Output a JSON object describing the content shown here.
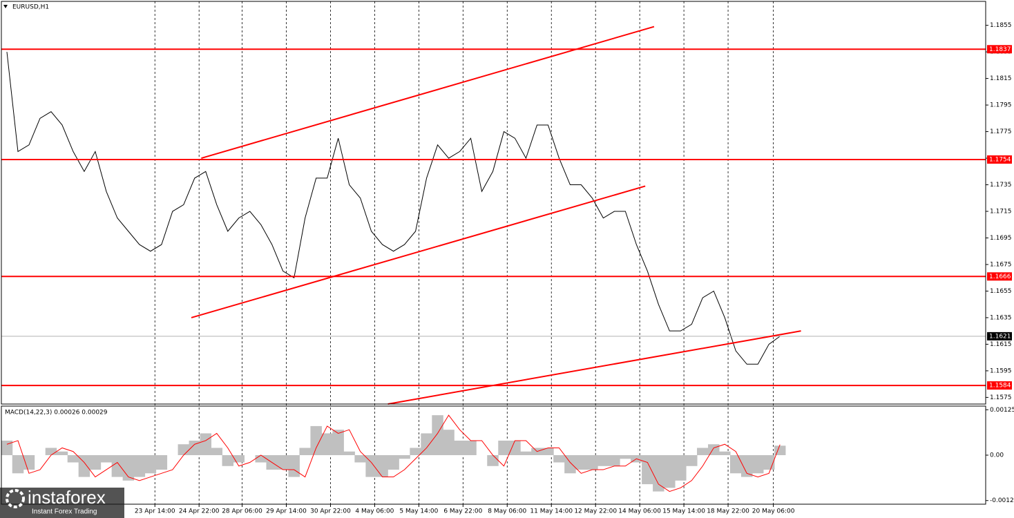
{
  "chart_data": [
    {
      "type": "line",
      "title": "EURUSD,H1",
      "color": "#000000",
      "x": [
        0,
        1,
        2,
        3,
        4,
        5,
        6,
        7,
        8,
        9,
        10,
        11,
        12,
        13,
        14,
        15,
        16,
        17,
        18,
        19,
        20,
        21,
        22,
        23,
        24,
        25,
        26,
        27,
        28,
        29,
        30,
        31,
        32,
        33,
        34,
        35,
        36,
        37,
        38,
        39,
        40,
        41,
        42,
        43,
        44,
        45,
        46,
        47,
        48,
        49,
        50,
        51,
        52,
        53,
        54,
        55,
        56,
        57,
        58,
        59,
        60,
        61,
        62,
        63,
        64,
        65,
        66,
        67,
        68,
        69,
        70
      ],
      "values": [
        1.1835,
        1.176,
        1.1765,
        1.1785,
        1.179,
        1.178,
        1.176,
        1.1745,
        1.176,
        1.173,
        1.171,
        1.17,
        1.169,
        1.1685,
        1.169,
        1.1715,
        1.172,
        1.174,
        1.1745,
        1.172,
        1.17,
        1.171,
        1.1715,
        1.1705,
        1.169,
        1.167,
        1.1665,
        1.171,
        1.174,
        1.174,
        1.177,
        1.1735,
        1.1725,
        1.17,
        1.169,
        1.1685,
        1.169,
        1.17,
        1.174,
        1.1765,
        1.1755,
        1.176,
        1.177,
        1.173,
        1.1745,
        1.1775,
        1.177,
        1.1755,
        1.178,
        1.178,
        1.1755,
        1.1735,
        1.1735,
        1.1725,
        1.171,
        1.1715,
        1.1715,
        1.169,
        1.167,
        1.1645,
        1.1625,
        1.1625,
        1.163,
        1.165,
        1.1655,
        1.1635,
        1.161,
        1.16,
        1.16,
        1.1615,
        1.1621
      ],
      "xlim": [
        -0.5,
        88.625
      ],
      "ylim": [
        1.157,
        1.1873
      ],
      "yticks": [
        1.1855,
        1.1835,
        1.1815,
        1.1795,
        1.1775,
        1.1755,
        1.1735,
        1.1715,
        1.1695,
        1.1675,
        1.1655,
        1.1635,
        1.1615,
        1.1595,
        1.1575
      ],
      "xticks": [
        {
          "value": 13.4,
          "label": "23 Apr 14:00"
        },
        {
          "value": 17.4,
          "label": "24 Apr 22:00"
        },
        {
          "value": 21.3,
          "label": "28 Apr 06:00"
        },
        {
          "value": 25.3,
          "label": "29 Apr 14:00"
        },
        {
          "value": 29.3,
          "label": "30 Apr 22:00"
        },
        {
          "value": 33.3,
          "label": "4 May 06:00"
        },
        {
          "value": 37.3,
          "label": "5 May 14:00"
        },
        {
          "value": 41.3,
          "label": "6 May 22:00"
        },
        {
          "value": 45.3,
          "label": "8 May 06:00"
        },
        {
          "value": 49.3,
          "label": "11 May 14:00"
        },
        {
          "value": 53.3,
          "label": "12 May 22:00"
        },
        {
          "value": 57.3,
          "label": "14 May 06:00"
        },
        {
          "value": 61.3,
          "label": "15 May 14:00"
        },
        {
          "value": 65.3,
          "label": "18 May 22:00"
        },
        {
          "value": 69.4,
          "label": "20 May 06:00"
        }
      ],
      "grid": true,
      "levels": [
        {
          "value": 1.1837,
          "color": "#ff0000"
        },
        {
          "value": 1.1754,
          "color": "#ff0000"
        },
        {
          "value": 1.1666,
          "color": "#ff0000"
        },
        {
          "value": 1.1584,
          "color": "#ff0000"
        }
      ],
      "current_price": 1.1621,
      "trend_lines": [
        {
          "x": [
            17.6,
            58.6
          ],
          "values": [
            1.1755,
            1.1854
          ],
          "color": "#ff0000"
        },
        {
          "x": [
            16.7,
            57.8
          ],
          "values": [
            1.1635,
            1.1734
          ],
          "color": "#ff0000"
        },
        {
          "x": [
            34.5,
            71.9
          ],
          "values": [
            1.157,
            1.1625
          ],
          "color": "#ff0000"
        }
      ]
    },
    {
      "type": "bar",
      "title": "MACD(14,22,3) 0.00026 0.00029",
      "color": "#c0c0c0",
      "signal_color": "#ff0000",
      "x": [
        0,
        1,
        2,
        3,
        4,
        5,
        6,
        7,
        8,
        9,
        10,
        11,
        12,
        13,
        14,
        15,
        16,
        17,
        18,
        19,
        20,
        21,
        22,
        23,
        24,
        25,
        26,
        27,
        28,
        29,
        30,
        31,
        32,
        33,
        34,
        35,
        36,
        37,
        38,
        39,
        40,
        41,
        42,
        43,
        44,
        45,
        46,
        47,
        48,
        49,
        50,
        51,
        52,
        53,
        54,
        55,
        56,
        57,
        58,
        59,
        60,
        61,
        62,
        63,
        64,
        65,
        66,
        67,
        68,
        69,
        70
      ],
      "values": [
        0.0004,
        -0.0005,
        -0.0004,
        0.0,
        0.0002,
        0.0001,
        -0.0002,
        -0.0006,
        -0.0004,
        -0.0002,
        -0.0006,
        -0.0007,
        -0.0006,
        -0.0005,
        -0.0004,
        0.0,
        0.0003,
        0.0004,
        0.0006,
        0.0002,
        -0.0003,
        -0.0002,
        0.0,
        -0.0002,
        -0.0004,
        -0.0004,
        -0.0006,
        0.0002,
        0.0008,
        0.0006,
        0.0007,
        0.0001,
        -0.0002,
        -0.0006,
        -0.0006,
        -0.0004,
        -0.0001,
        0.0002,
        0.0006,
        0.0011,
        0.0007,
        0.0004,
        0.0004,
        0.0,
        -0.0003,
        0.0004,
        0.0004,
        0.0001,
        0.0002,
        0.0002,
        -0.0002,
        -0.0005,
        -0.0004,
        -0.0004,
        -0.0003,
        -0.0003,
        -0.0001,
        -0.0002,
        -0.0008,
        -0.001,
        -0.0009,
        -0.0007,
        -0.0003,
        0.0002,
        0.0003,
        0.0001,
        -0.0005,
        -0.0006,
        -0.0005,
        -0.0004,
        0.00026
      ],
      "signal": [
        0.0003,
        0.0004,
        -0.0005,
        -0.0004,
        0.0,
        0.0002,
        0.0001,
        -0.0002,
        -0.0006,
        -0.0004,
        -0.0002,
        -0.0006,
        -0.0007,
        -0.0006,
        -0.0005,
        -0.0004,
        0.0,
        0.0003,
        0.0004,
        0.0006,
        0.0002,
        -0.0003,
        -0.0002,
        0.0,
        -0.0002,
        -0.0004,
        -0.0004,
        -0.0006,
        0.0002,
        0.0008,
        0.0006,
        0.0007,
        0.0001,
        -0.0002,
        -0.0006,
        -0.0006,
        -0.0004,
        -0.0001,
        0.0002,
        0.0006,
        0.0011,
        0.0007,
        0.0004,
        0.0004,
        0.0,
        -0.0003,
        0.0004,
        0.0004,
        0.0001,
        0.0002,
        0.0002,
        -0.0002,
        -0.0005,
        -0.0004,
        -0.0004,
        -0.0003,
        -0.0003,
        -0.0001,
        -0.0002,
        -0.0008,
        -0.001,
        -0.0009,
        -0.0007,
        -0.0003,
        0.0002,
        0.0003,
        0.0001,
        -0.0005,
        -0.0006,
        -0.0005,
        0.00029
      ],
      "xlim": [
        -0.5,
        88.625
      ],
      "ylim": [
        -0.00135,
        0.00135
      ],
      "yticks": [
        0.00125,
        {
          "value": 0,
          "label": "0.00"
        },
        -0.00125
      ]
    }
  ],
  "watermark": {
    "brand": "instaforex",
    "tagline": "Instant Forex Trading"
  }
}
